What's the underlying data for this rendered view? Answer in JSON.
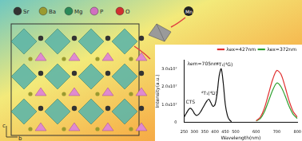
{
  "structure": {
    "atoms": [
      {
        "label": "Sr",
        "color": "#333333"
      },
      {
        "label": "Ba",
        "color": "#9a9a30"
      },
      {
        "label": "Mg",
        "color": "#2a8a5a"
      },
      {
        "label": "P",
        "color": "#d070c0"
      },
      {
        "label": "O",
        "color": "#d03030"
      }
    ],
    "ion": {
      "label": "Mn",
      "color": "#222222"
    },
    "axis_labels": [
      "c",
      "b"
    ]
  },
  "chart_data": {
    "type": "line",
    "x_label": "Wavelength(nm)",
    "y_label": "Intensity(a.u.)",
    "xlim": [
      250,
      800
    ],
    "xticks": [
      250,
      300,
      350,
      400,
      450,
      500,
      600,
      700,
      800
    ],
    "ylim": [
      0,
      35000000
    ],
    "yticks": [
      {
        "value": 0,
        "label": "0"
      },
      {
        "value": 10000000,
        "label": "1.0x10⁷"
      },
      {
        "value": 20000000,
        "label": "2.0x10⁷"
      },
      {
        "value": 30000000,
        "label": "3.0x10⁷"
      }
    ],
    "grid": false,
    "legend": "top right",
    "series": [
      {
        "name": "λem=705nm",
        "color": "#111111",
        "x": [
          250,
          260,
          270,
          280,
          290,
          300,
          310,
          320,
          330,
          340,
          350,
          360,
          370,
          380,
          390,
          400,
          410,
          420,
          430,
          440,
          450,
          460,
          470,
          480
        ],
        "values": [
          3000000,
          5000000,
          7000000,
          8000000,
          7000000,
          5000000,
          4000000,
          4500000,
          6000000,
          8000000,
          10000000,
          12000000,
          13000000,
          11000000,
          9000000,
          10000000,
          16000000,
          26000000,
          30000000,
          22000000,
          10000000,
          4000000,
          1500000,
          500000
        ]
      },
      {
        "name": "λex=427nm",
        "color": "#e03030",
        "x": [
          600,
          620,
          640,
          660,
          680,
          700,
          720,
          740,
          760,
          780,
          800
        ],
        "values": [
          1000000,
          3000000,
          8000000,
          16000000,
          24000000,
          29000000,
          27000000,
          20000000,
          12000000,
          6000000,
          3000000
        ]
      },
      {
        "name": "λex=372nm",
        "color": "#30a030",
        "x": [
          600,
          620,
          640,
          660,
          680,
          700,
          720,
          740,
          760,
          780,
          800
        ],
        "values": [
          800000,
          2200000,
          6000000,
          12000000,
          18000000,
          22000000,
          20000000,
          15000000,
          9000000,
          4500000,
          2200000
        ]
      }
    ],
    "annotations": [
      {
        "text": "CTS",
        "x": 280,
        "y": 10000000
      },
      {
        "text": "⁴T₁(⁴D)",
        "x": 372,
        "y": 15000000
      },
      {
        "text": "⁴T₁(⁴G)",
        "x": 447,
        "y": 31000000
      }
    ]
  }
}
